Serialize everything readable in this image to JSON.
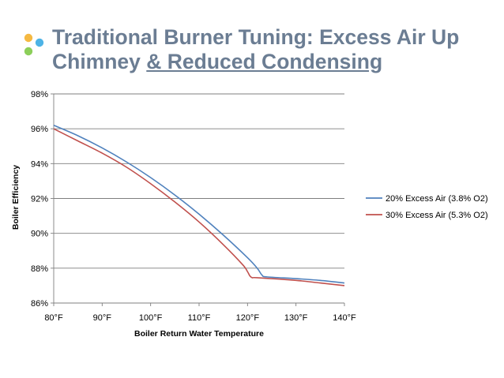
{
  "slide": {
    "title_line1": "Traditional Burner Tuning: Excess Air Up",
    "title_line2_plain": "Chimney ",
    "title_line2_underlined": "& Reduced Condensing",
    "logo_colors": [
      "#f5b942",
      "#4db3e6",
      "#8ccf5a"
    ]
  },
  "chart_data": {
    "type": "line",
    "title": "",
    "xlabel": "Boiler Return Water Temperature",
    "ylabel": "Boiler Efficiency",
    "xlim": [
      80,
      140
    ],
    "ylim": [
      86,
      98
    ],
    "xticks": [
      80,
      90,
      100,
      110,
      120,
      130,
      140
    ],
    "xtick_labels": [
      "80°F",
      "90°F",
      "100°F",
      "110°F",
      "120°F",
      "130°F",
      "140°F"
    ],
    "yticks": [
      86,
      88,
      90,
      92,
      94,
      96,
      98
    ],
    "ytick_labels": [
      "86%",
      "88%",
      "90%",
      "92%",
      "94%",
      "96%",
      "98%"
    ],
    "grid": "horizontal",
    "legend_position": "right",
    "series": [
      {
        "name": "20% Excess Air (3.8% O2)",
        "color": "#4f81bd",
        "x": [
          80,
          85,
          90,
          95,
          100,
          105,
          110,
          115,
          120,
          122,
          123,
          124,
          130,
          135,
          140
        ],
        "y": [
          96.2,
          95.6,
          94.9,
          94.1,
          93.2,
          92.2,
          91.1,
          89.9,
          88.6,
          88.0,
          87.6,
          87.5,
          87.4,
          87.3,
          87.15
        ]
      },
      {
        "name": "30% Excess Air (5.3% O2)",
        "color": "#c0504d",
        "x": [
          80,
          85,
          90,
          95,
          100,
          105,
          110,
          115,
          119,
          120,
          120.5,
          121,
          122,
          130,
          135,
          140
        ],
        "y": [
          96.0,
          95.3,
          94.6,
          93.8,
          92.85,
          91.8,
          90.65,
          89.35,
          88.2,
          87.8,
          87.55,
          87.45,
          87.45,
          87.3,
          87.15,
          87.0
        ]
      }
    ]
  }
}
